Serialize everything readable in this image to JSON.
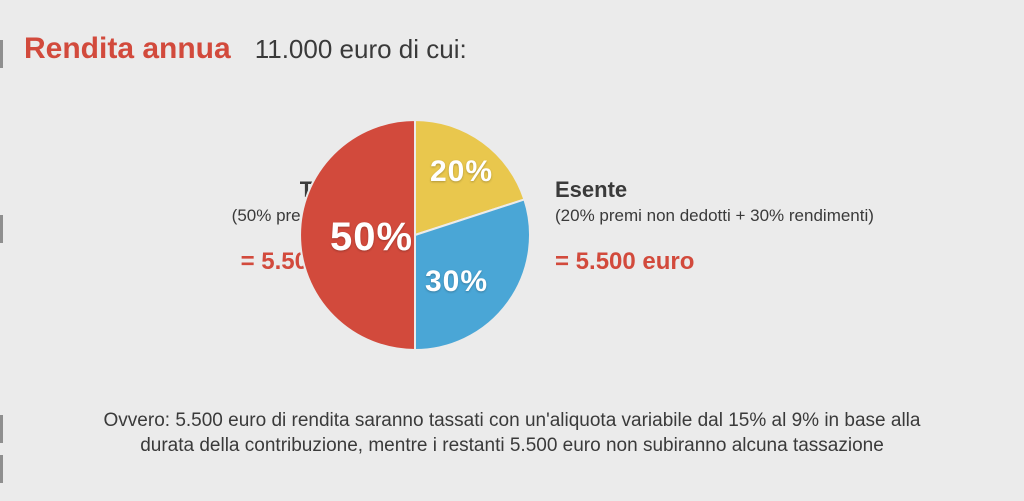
{
  "header": {
    "title": "Rendita annua",
    "subtitle": "11.000 euro di cui:"
  },
  "pie": {
    "type": "pie",
    "background_color": "#ebebeb",
    "radius": 115,
    "slices": [
      {
        "id": "tassata",
        "value": 50,
        "label": "50%",
        "color": "#d24a3c",
        "start_deg": 180,
        "end_deg": 360
      },
      {
        "id": "non_dedotti",
        "value": 20,
        "label": "20%",
        "color": "#e9c74d",
        "start_deg": 0,
        "end_deg": 72
      },
      {
        "id": "rendimenti",
        "value": 30,
        "label": "30%",
        "color": "#4aa6d6",
        "start_deg": 72,
        "end_deg": 180
      }
    ],
    "separator_color": "#ebebeb",
    "separator_width": 2,
    "label_fontsize_big": 40,
    "label_fontsize_small": 30,
    "label_color": "#ffffff"
  },
  "left_side": {
    "heading": "Tassata",
    "detail": "(50% premi dedotti)",
    "value": "= 5.500 euro",
    "value_color": "#d24a3c"
  },
  "right_side": {
    "heading": "Esente",
    "detail": "(20% premi non dedotti + 30% rendimenti)",
    "value": "= 5.500 euro",
    "value_color": "#d24a3c"
  },
  "footer": {
    "text": "Ovvero: 5.500 euro di rendita saranno tassati con un'aliquota variabile dal 15% al 9% in base alla durata della contribuzione, mentre i restanti 5.500 euro non subiranno alcuna tassazione"
  },
  "colors": {
    "accent": "#d24a3c",
    "text": "#3a3a3a",
    "bg": "#ebebeb"
  }
}
